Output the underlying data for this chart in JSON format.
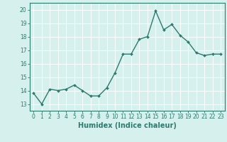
{
  "x": [
    0,
    1,
    2,
    3,
    4,
    5,
    6,
    7,
    8,
    9,
    10,
    11,
    12,
    13,
    14,
    15,
    16,
    17,
    18,
    19,
    20,
    21,
    22,
    23
  ],
  "y": [
    13.8,
    13.0,
    14.1,
    14.0,
    14.1,
    14.4,
    14.0,
    13.6,
    13.6,
    14.2,
    15.3,
    16.7,
    16.7,
    17.8,
    18.0,
    19.9,
    18.5,
    18.9,
    18.1,
    17.6,
    16.8,
    16.6,
    16.7,
    16.7
  ],
  "line_color": "#2d7a6e",
  "marker": "D",
  "marker_size": 2.0,
  "background_color": "#d6f0ee",
  "grid_color": "#ffffff",
  "xlabel": "Humidex (Indice chaleur)",
  "xlim": [
    -0.5,
    23.5
  ],
  "ylim": [
    12.5,
    20.5
  ],
  "yticks": [
    13,
    14,
    15,
    16,
    17,
    18,
    19,
    20
  ],
  "xticks": [
    0,
    1,
    2,
    3,
    4,
    5,
    6,
    7,
    8,
    9,
    10,
    11,
    12,
    13,
    14,
    15,
    16,
    17,
    18,
    19,
    20,
    21,
    22,
    23
  ],
  "tick_color": "#2d7a6e",
  "tick_fontsize": 5.5,
  "xlabel_fontsize": 7.0,
  "line_width": 1.0
}
